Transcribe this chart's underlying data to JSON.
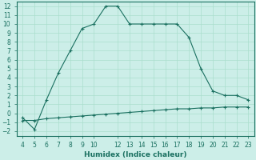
{
  "xlabel": "Humidex (Indice chaleur)",
  "background_color": "#cceee8",
  "grid_color": "#aaddcc",
  "line_color": "#1a7060",
  "xlim": [
    3.5,
    23.5
  ],
  "ylim": [
    -2.5,
    12.5
  ],
  "xticks": [
    4,
    5,
    6,
    7,
    8,
    9,
    10,
    12,
    13,
    14,
    15,
    16,
    17,
    18,
    19,
    20,
    21,
    22,
    23
  ],
  "yticks": [
    -2,
    -1,
    0,
    1,
    2,
    3,
    4,
    5,
    6,
    7,
    8,
    9,
    10,
    11,
    12
  ],
  "line1_x": [
    4,
    5,
    6,
    7,
    8,
    9,
    10,
    11,
    12,
    13,
    14,
    15,
    16,
    17,
    18,
    19,
    20,
    21,
    22,
    23
  ],
  "line1_y": [
    -0.5,
    -1.8,
    1.5,
    4.5,
    7.0,
    9.5,
    10.0,
    12.0,
    12.0,
    10.0,
    10.0,
    10.0,
    10.0,
    10.0,
    8.5,
    5.0,
    2.5,
    2.0,
    2.0,
    1.5
  ],
  "line2_x": [
    4,
    5,
    6,
    7,
    8,
    9,
    10,
    11,
    12,
    13,
    14,
    15,
    16,
    17,
    18,
    19,
    20,
    21,
    22,
    23
  ],
  "line2_y": [
    -0.8,
    -0.8,
    -0.6,
    -0.5,
    -0.4,
    -0.3,
    -0.2,
    -0.1,
    0.0,
    0.1,
    0.2,
    0.3,
    0.4,
    0.5,
    0.5,
    0.6,
    0.6,
    0.7,
    0.7,
    0.7
  ]
}
